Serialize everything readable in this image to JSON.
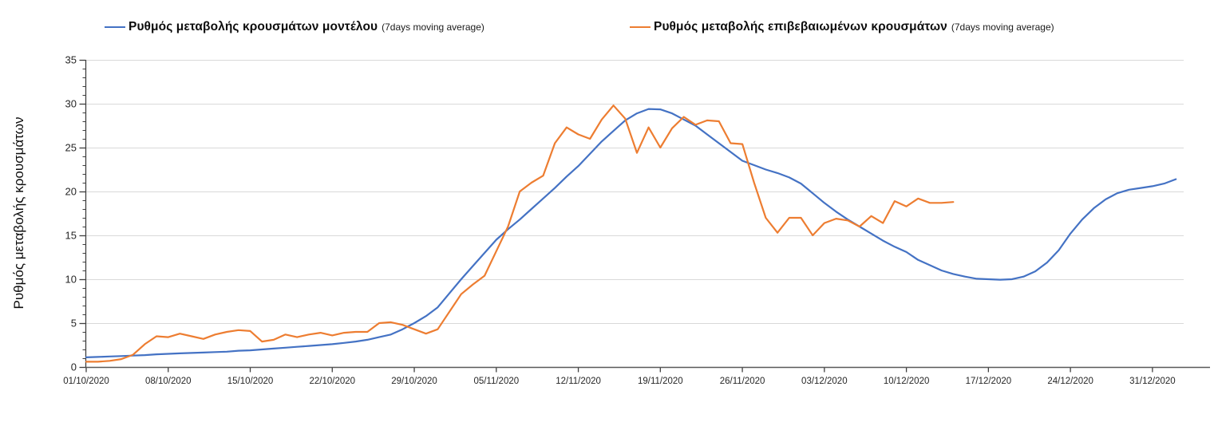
{
  "page": {
    "background": "#ffffff"
  },
  "legend": {
    "entries": [
      {
        "label": "Ρυθμός μεταβολής κρουσμάτων μοντέλου",
        "sublabel": "(7days moving average)",
        "color": "#4472c4"
      },
      {
        "label": "Ρυθμός μεταβολής επιβεβαιωμένων κρουσμάτων",
        "sublabel": "(7days moving average)",
        "color": "#ed7d31"
      }
    ]
  },
  "chart_data": {
    "type": "line",
    "title": "",
    "xlabel": "",
    "ylabel": "Ρυθμός μεταβολής κρουσμάτων",
    "ylim": [
      0,
      35
    ],
    "yticks": [
      0,
      5,
      10,
      15,
      20,
      25,
      30,
      35
    ],
    "y_minor_step": 1,
    "grid": "horizontal-major",
    "grid_color": "#d9d9d9",
    "axis_color": "#404040",
    "tick_label_color": "#262626",
    "legend_position": "top",
    "x_tick_interval_days": 7,
    "x_tick_labels": [
      "01/10/2020",
      "08/10/2020",
      "15/10/2020",
      "22/10/2020",
      "29/10/2020",
      "05/11/2020",
      "12/11/2020",
      "19/11/2020",
      "26/11/2020",
      "03/12/2020",
      "10/12/2020",
      "17/12/2020",
      "24/12/2020",
      "31/12/2020"
    ],
    "series": [
      {
        "name": "Ρυθμός μεταβολής κρουσμάτων μοντέλου (7days moving average)",
        "color": "#4472c4",
        "start_day": 0,
        "step_days": 1,
        "values": [
          1.1,
          1.15,
          1.2,
          1.25,
          1.3,
          1.35,
          1.45,
          1.5,
          1.55,
          1.6,
          1.65,
          1.7,
          1.75,
          1.85,
          1.9,
          2.0,
          2.1,
          2.2,
          2.3,
          2.4,
          2.5,
          2.6,
          2.75,
          2.9,
          3.1,
          3.4,
          3.7,
          4.3,
          5.0,
          5.8,
          6.8,
          8.4,
          10.0,
          11.5,
          13.0,
          14.5,
          15.7,
          16.8,
          18.0,
          19.2,
          20.4,
          21.7,
          22.9,
          24.3,
          25.7,
          26.9,
          28.1,
          28.9,
          29.4,
          29.35,
          28.9,
          28.2,
          27.5,
          26.5,
          25.5,
          24.5,
          23.5,
          23.0,
          22.5,
          22.1,
          21.6,
          20.9,
          19.8,
          18.7,
          17.7,
          16.8,
          16.0,
          15.2,
          14.4,
          13.7,
          13.1,
          12.2,
          11.6,
          11.0,
          10.6,
          10.3,
          10.05,
          10.0,
          9.95,
          10.0,
          10.3,
          10.9,
          11.9,
          13.3,
          15.2,
          16.8,
          18.1,
          19.1,
          19.8,
          20.2,
          20.4,
          20.6,
          20.9,
          21.4
        ]
      },
      {
        "name": "Ρυθμός μεταβολής επιβεβαιωμένων κρουσμάτων (7days moving average)",
        "color": "#ed7d31",
        "start_day": 0,
        "step_days": 1,
        "values": [
          0.6,
          0.6,
          0.7,
          0.9,
          1.4,
          2.6,
          3.5,
          3.4,
          3.8,
          3.5,
          3.2,
          3.7,
          4.0,
          4.2,
          4.1,
          2.9,
          3.1,
          3.7,
          3.4,
          3.7,
          3.9,
          3.6,
          3.9,
          4.0,
          4.0,
          5.0,
          5.1,
          4.8,
          4.3,
          3.8,
          4.3,
          6.3,
          8.3,
          9.4,
          10.4,
          13.2,
          16.0,
          20.0,
          21.0,
          21.8,
          25.5,
          27.3,
          26.5,
          26.0,
          28.2,
          29.8,
          28.3,
          24.4,
          27.3,
          25.0,
          27.2,
          28.5,
          27.6,
          28.1,
          28.0,
          25.5,
          25.4,
          21.0,
          17.0,
          15.3,
          17.0,
          17.0,
          15.0,
          16.4,
          16.9,
          16.7,
          16.0,
          17.2,
          16.4,
          18.9,
          18.3,
          19.2,
          18.7,
          18.7,
          18.8
        ]
      }
    ]
  }
}
